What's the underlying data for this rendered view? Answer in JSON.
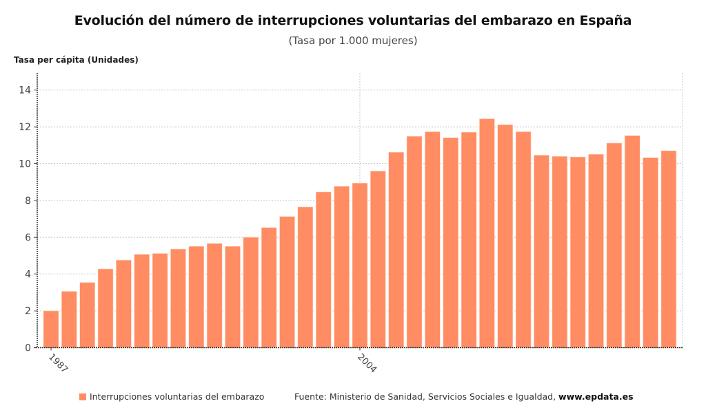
{
  "chart_data": {
    "type": "bar",
    "title": "Evolución del número de interrupciones voluntarias del embarazo en España",
    "subtitle": "(Tasa por 1.000 mujeres)",
    "xlabel": "",
    "ylabel": "Tasa per cápita (Unidades)",
    "ylim": [
      0,
      15
    ],
    "yticks": [
      0,
      2,
      4,
      6,
      8,
      10,
      12,
      14
    ],
    "xtick_labels": [
      "1987",
      "2004"
    ],
    "grid": true,
    "legend_position": "bottom-left",
    "bar_color": "#ff8c62",
    "categories": [
      "1987",
      "1988",
      "1989",
      "1990",
      "1991",
      "1992",
      "1993",
      "1994",
      "1995",
      "1996",
      "1997",
      "1998",
      "1999",
      "2000",
      "2001",
      "2002",
      "2003",
      "2004",
      "2005",
      "2006",
      "2007",
      "2008",
      "2009",
      "2010",
      "2011",
      "2012",
      "2013",
      "2014",
      "2015",
      "2016",
      "2017",
      "2018",
      "2019",
      "2020",
      "2021"
    ],
    "series": [
      {
        "name": "Interrupciones voluntarias del embarazo",
        "values": [
          2.0,
          3.06,
          3.54,
          4.28,
          4.76,
          5.07,
          5.12,
          5.36,
          5.51,
          5.66,
          5.51,
          6.0,
          6.52,
          7.12,
          7.65,
          8.46,
          8.77,
          8.94,
          9.6,
          10.62,
          11.49,
          11.74,
          11.41,
          11.71,
          12.44,
          12.12,
          11.74,
          10.46,
          10.4,
          10.36,
          10.51,
          11.12,
          11.53,
          10.33,
          10.7
        ]
      }
    ]
  },
  "legend": {
    "label": "Interrupciones voluntarias del embarazo"
  },
  "source": {
    "prefix": "Fuente: Ministerio de Sanidad, Servicios Sociales e Igualdad, ",
    "site": "www.epdata.es"
  }
}
